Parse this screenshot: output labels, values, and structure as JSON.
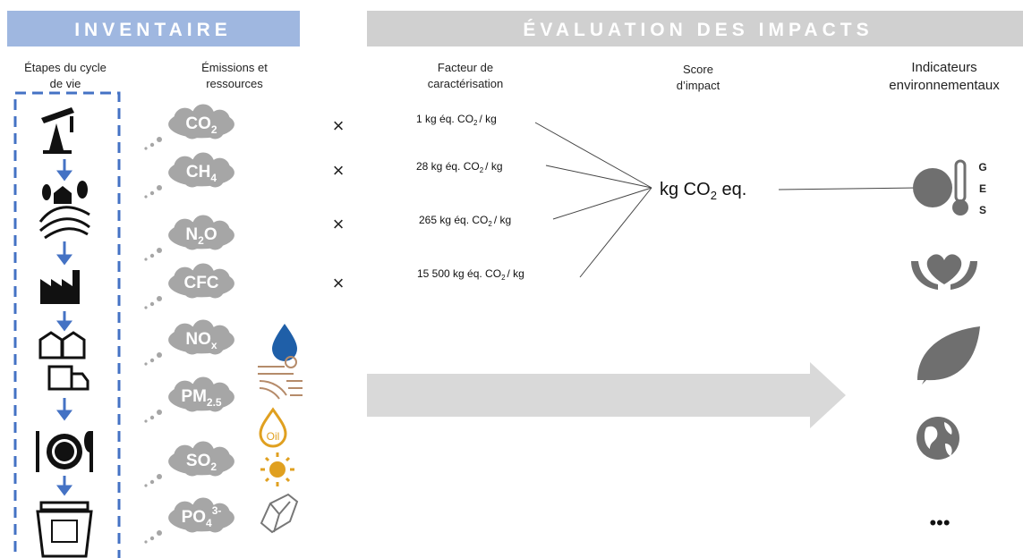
{
  "header": {
    "inventory": "INVENTAIRE",
    "impacts": "ÉVALUATION DES IMPACTS"
  },
  "columns": {
    "stages": [
      "Étapes du cycle",
      "de vie"
    ],
    "emissions": [
      "Émissions et",
      "ressources"
    ],
    "factor": [
      "Facteur de",
      "caractérisation"
    ],
    "score": [
      "Score",
      "d’impact"
    ],
    "indicators": [
      "Indicateurs",
      "environnementaux"
    ]
  },
  "emissions": [
    {
      "base": "CO",
      "sub": "2",
      "sup": ""
    },
    {
      "base": "CH",
      "sub": "4",
      "sup": ""
    },
    {
      "base": "N",
      "sub": "2",
      "sup": "",
      "tail": "O"
    },
    {
      "base": "CFC",
      "sub": "",
      "sup": ""
    },
    {
      "base": "NO",
      "sub": "x",
      "sup": ""
    },
    {
      "base": "PM",
      "sub": "2.5",
      "sup": ""
    },
    {
      "base": "SO",
      "sub": "2",
      "sup": ""
    },
    {
      "base": "PO",
      "sub": "4",
      "sup": "3-"
    }
  ],
  "multipliers": [
    "×",
    "×",
    "×",
    "×"
  ],
  "factors": [
    {
      "prefix": "1 kg éq. CO",
      "sub": "2",
      "suffix": "/ kg"
    },
    {
      "prefix": "28 kg éq. CO",
      "sub": "2",
      "suffix": "/ kg"
    },
    {
      "prefix": "265 kg éq. CO",
      "sub": "2",
      "suffix": "/ kg"
    },
    {
      "prefix": "15 500 kg éq. CO",
      "sub": "2",
      "suffix": "/ kg"
    }
  ],
  "score": {
    "prefix": "kg CO",
    "sub": "2",
    "suffix": " eq."
  },
  "ges": [
    "G",
    "E",
    "S"
  ],
  "oil_label": "Oil",
  "more": "•••"
}
